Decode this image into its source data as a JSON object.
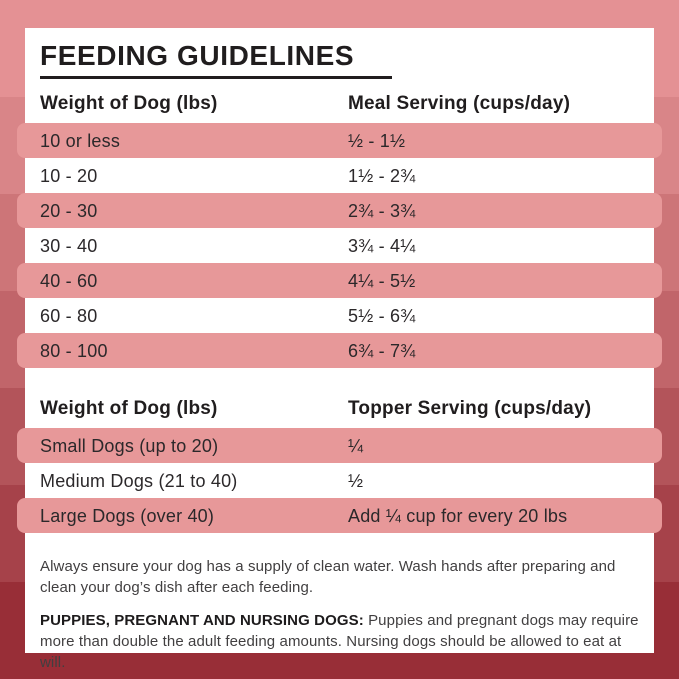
{
  "title": "FEEDING GUIDELINES",
  "colors": {
    "card_bg": "#ffffff",
    "row_pink": "#e79899",
    "title_text": "#201d1e",
    "row_text": "#2b282a",
    "note_text": "#413f40",
    "background_bands": [
      "#e49194",
      "#d98588",
      "#cd7578",
      "#c1656a",
      "#b3545a",
      "#a6424a",
      "#982e37"
    ]
  },
  "meal_table": {
    "col1_header": "Weight of Dog (lbs)",
    "col2_header": "Meal Serving (cups/day)",
    "rows": [
      {
        "weight": "10 or less",
        "serving": "½ - 1½"
      },
      {
        "weight": "10 - 20",
        "serving": "1½ - 2¾"
      },
      {
        "weight": "20 - 30",
        "serving": "2¾ - 3¾"
      },
      {
        "weight": "30 - 40",
        "serving": "3¾ - 4¼"
      },
      {
        "weight": "40 - 60",
        "serving": "4¼ - 5½"
      },
      {
        "weight": "60 - 80",
        "serving": "5½ - 6¾"
      },
      {
        "weight": "80 - 100",
        "serving": "6¾ - 7¾"
      }
    ]
  },
  "topper_table": {
    "col1_header": "Weight of Dog (lbs)",
    "col2_header": "Topper Serving (cups/day)",
    "rows": [
      {
        "weight": "Small Dogs (up to 20)",
        "serving": "¼"
      },
      {
        "weight": "Medium Dogs (21 to 40)",
        "serving": "½"
      },
      {
        "weight": "Large Dogs (over 40)",
        "serving": "Add ¼ cup for every 20 lbs"
      }
    ]
  },
  "notes": {
    "water": "Always ensure your dog has a supply of clean water. Wash hands after preparing and clean your dog’s dish after each feeding.",
    "puppies_label": "PUPPIES, PREGNANT AND NURSING DOGS:",
    "puppies_text": " Puppies and pregnant dogs may require more than double the adult feeding amounts. Nursing dogs should be allowed to eat at will."
  }
}
